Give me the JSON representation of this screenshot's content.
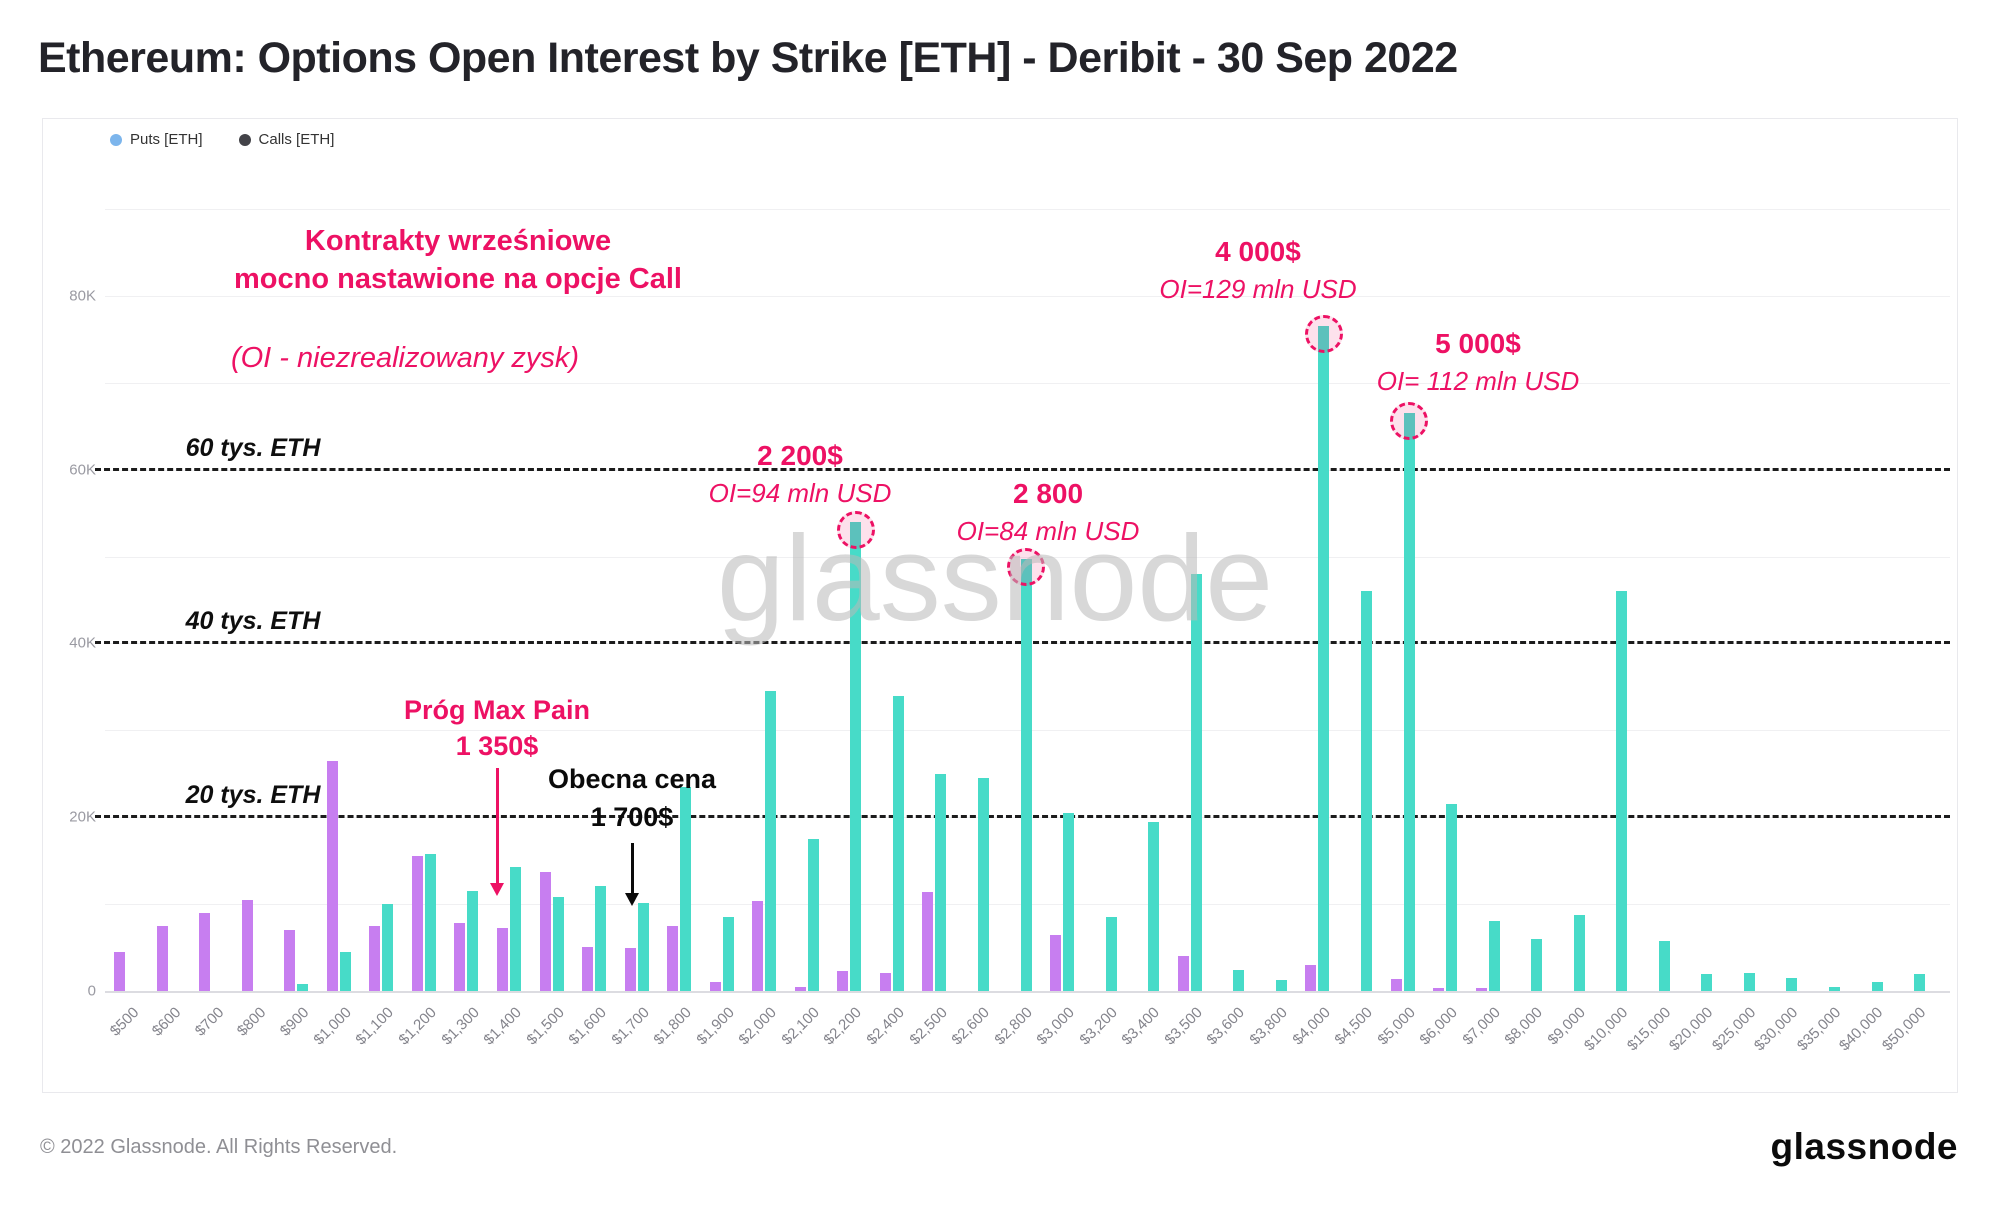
{
  "title": "Ethereum: Options Open Interest by Strike [ETH] - Deribit - 30 Sep 2022",
  "legend": {
    "items": [
      {
        "label": "Puts [ETH]",
        "dot_color": "#7cb5ec"
      },
      {
        "label": "Calls [ETH]",
        "dot_color": "#434348"
      }
    ]
  },
  "watermark": "glassnode",
  "footer": {
    "copyright": "© 2022 Glassnode. All Rights Reserved.",
    "logo_text": "glassnode"
  },
  "colors": {
    "puts_bar": "#c77ef0",
    "calls_bar": "#47dbc8",
    "accent_pink": "#ed1164",
    "grid": "#f0f0f2",
    "axis_text": "#9a9aa2"
  },
  "chart_data": {
    "type": "bar",
    "title": "Ethereum: Options Open Interest by Strike [ETH] - Deribit - 30 Sep 2022",
    "units": "thousand ETH (K)",
    "categories": [
      "$500",
      "$600",
      "$700",
      "$800",
      "$900",
      "$1,000",
      "$1,100",
      "$1,200",
      "$1,300",
      "$1,400",
      "$1,500",
      "$1,600",
      "$1,700",
      "$1,800",
      "$1,900",
      "$2,000",
      "$2,100",
      "$2,200",
      "$2,400",
      "$2,500",
      "$2,600",
      "$2,800",
      "$3,000",
      "$3,200",
      "$3,400",
      "$3,500",
      "$3,600",
      "$3,800",
      "$4,000",
      "$4,500",
      "$5,000",
      "$6,000",
      "$7,000",
      "$8,000",
      "$9,000",
      "$10,000",
      "$15,000",
      "$20,000",
      "$25,000",
      "$30,000",
      "$35,000",
      "$40,000",
      "$50,000"
    ],
    "series": [
      {
        "name": "Puts [ETH]",
        "values": [
          4.5,
          7.5,
          9,
          10.5,
          7,
          26.5,
          7.5,
          15.5,
          7.8,
          7.3,
          13.7,
          5.1,
          5,
          7.5,
          1,
          10.4,
          0.5,
          2.3,
          2.1,
          11.4,
          0,
          0,
          6.4,
          0,
          0,
          4,
          0,
          0,
          3,
          0,
          1.4,
          0.3,
          0.3,
          0,
          0,
          0,
          0,
          0,
          0,
          0,
          0,
          0,
          0
        ]
      },
      {
        "name": "Calls [ETH]",
        "values": [
          0,
          0,
          0,
          0,
          0.8,
          4.5,
          10,
          15.8,
          11.5,
          14.3,
          10.8,
          12.1,
          10.1,
          23.5,
          8.5,
          34.5,
          17.5,
          54,
          34,
          25,
          24.5,
          49.7,
          20.5,
          8.5,
          19.5,
          48,
          2.4,
          1.3,
          76.5,
          46,
          66.5,
          21.5,
          8,
          6,
          8.7,
          46,
          5.7,
          1.9,
          2.1,
          1.5,
          0.5,
          1,
          2
        ]
      }
    ],
    "ylim": [
      0,
      91
    ],
    "yticks": [
      {
        "v": 0,
        "label": "0"
      },
      {
        "v": 20,
        "label": "20K"
      },
      {
        "v": 40,
        "label": "40K"
      },
      {
        "v": 60,
        "label": "60K"
      },
      {
        "v": 80,
        "label": "80K"
      }
    ],
    "gridline_step": 10,
    "grid": true,
    "legend_position": "top-left",
    "reference_lines": [
      {
        "value": 20,
        "label": "20 tys. ETH"
      },
      {
        "value": 40,
        "label": "40 tys. ETH"
      },
      {
        "value": 60,
        "label": "60 tys. ETH"
      }
    ],
    "highlighted_calls": [
      "$2,200",
      "$2,800",
      "$4,000",
      "$5,000"
    ]
  },
  "annotations": {
    "headline_line1": "Kontrakty wrześniowe",
    "headline_line2": "mocno nastawione na opcje Call",
    "oi_note": "(OI - niezrealizowany zysk)",
    "callout_2200_title": "2 200$",
    "callout_2200_sub": "OI=94 mln USD",
    "callout_2800_title": "2 800",
    "callout_2800_sub": "OI=84 mln USD",
    "callout_4000_title": "4 000$",
    "callout_4000_sub": "OI=129 mln USD",
    "callout_5000_title": "5 000$",
    "callout_5000_sub": "OI= 112 mln USD",
    "maxpain_line1": "Próg Max Pain",
    "maxpain_line2": "1 350$",
    "curprice_line1": "Obecna cena",
    "curprice_line2": "1 700$"
  }
}
